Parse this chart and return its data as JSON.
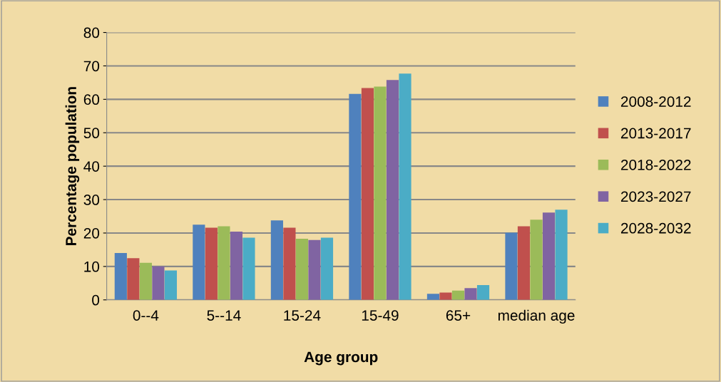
{
  "chart_data": {
    "type": "bar",
    "xlabel": "Age group",
    "ylabel": "Percentage population",
    "categories": [
      "0--4",
      "5--14",
      "15-24",
      "15-49",
      "65+",
      "median age"
    ],
    "series": [
      {
        "name": "2008-2012",
        "color": "#4f81bd",
        "values": [
          14,
          22.5,
          23.8,
          61.6,
          1.8,
          20.1
        ]
      },
      {
        "name": "2013-2017",
        "color": "#c0504d",
        "values": [
          12.5,
          21.6,
          21.6,
          63.4,
          2.2,
          22
        ]
      },
      {
        "name": "2018-2022",
        "color": "#9bbb59",
        "values": [
          11.1,
          22,
          18.3,
          63.8,
          2.8,
          24
        ]
      },
      {
        "name": "2023-2027",
        "color": "#8064a2",
        "values": [
          10,
          20.4,
          17.9,
          65.8,
          3.5,
          26.1
        ]
      },
      {
        "name": "2028-2032",
        "color": "#4bacc6",
        "values": [
          8.8,
          18.6,
          18.6,
          67.7,
          4.4,
          27
        ]
      }
    ],
    "ylim": [
      0,
      80
    ],
    "yticks": [
      0,
      10,
      20,
      30,
      40,
      50,
      60,
      70,
      80
    ],
    "grid": "y",
    "legend": "right"
  }
}
